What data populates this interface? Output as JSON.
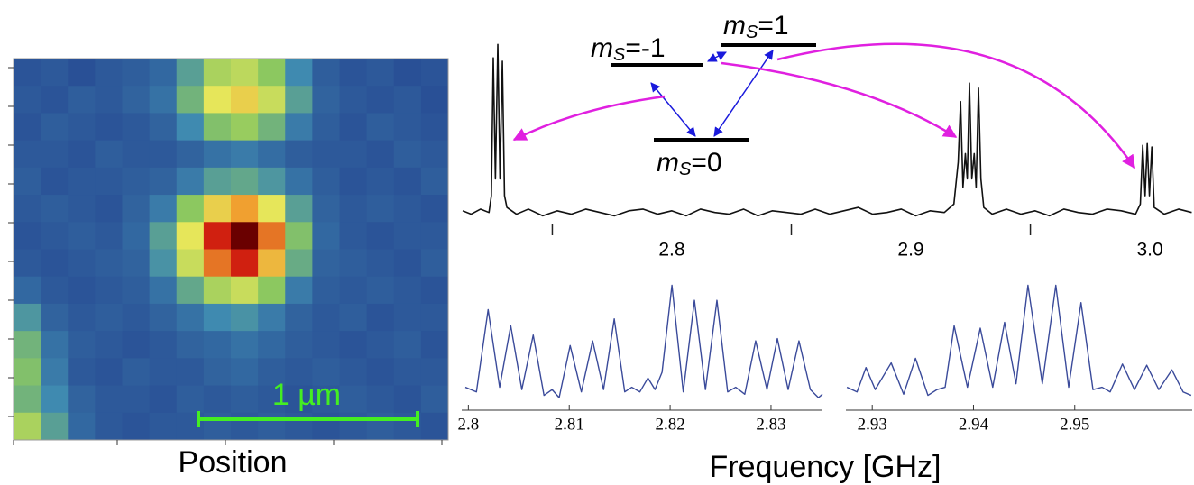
{
  "chart_data": [
    {
      "type": "heatmap",
      "xlabel": "Position",
      "scalebar_label": "1 µm",
      "clim": [
        0.1,
        1
      ],
      "colormap": [
        "#24418f",
        "#3f8ab0",
        "#8cc860",
        "#e6e65a",
        "#f0a030",
        "#d02010",
        "#6a0000"
      ],
      "values": [
        [
          0.14,
          0.15,
          0.13,
          0.15,
          0.16,
          0.18,
          0.3,
          0.45,
          0.48,
          0.4,
          0.25,
          0.16,
          0.14,
          0.15,
          0.13,
          0.14
        ],
        [
          0.15,
          0.14,
          0.16,
          0.15,
          0.17,
          0.2,
          0.35,
          0.55,
          0.6,
          0.5,
          0.3,
          0.17,
          0.15,
          0.14,
          0.15,
          0.13
        ],
        [
          0.14,
          0.16,
          0.15,
          0.14,
          0.15,
          0.17,
          0.25,
          0.38,
          0.42,
          0.35,
          0.22,
          0.16,
          0.14,
          0.16,
          0.15,
          0.14
        ],
        [
          0.15,
          0.15,
          0.14,
          0.16,
          0.15,
          0.15,
          0.17,
          0.2,
          0.22,
          0.19,
          0.16,
          0.15,
          0.15,
          0.14,
          0.16,
          0.15
        ],
        [
          0.16,
          0.14,
          0.15,
          0.15,
          0.16,
          0.17,
          0.22,
          0.3,
          0.32,
          0.28,
          0.2,
          0.16,
          0.14,
          0.15,
          0.14,
          0.16
        ],
        [
          0.15,
          0.16,
          0.15,
          0.14,
          0.17,
          0.22,
          0.4,
          0.6,
          0.7,
          0.55,
          0.3,
          0.17,
          0.15,
          0.16,
          0.15,
          0.14
        ],
        [
          0.14,
          0.15,
          0.16,
          0.15,
          0.18,
          0.3,
          0.55,
          0.85,
          1.0,
          0.75,
          0.38,
          0.18,
          0.15,
          0.14,
          0.15,
          0.15
        ],
        [
          0.15,
          0.14,
          0.15,
          0.16,
          0.17,
          0.27,
          0.5,
          0.75,
          0.85,
          0.65,
          0.33,
          0.17,
          0.16,
          0.15,
          0.14,
          0.16
        ],
        [
          0.18,
          0.15,
          0.14,
          0.15,
          0.16,
          0.2,
          0.32,
          0.45,
          0.5,
          0.4,
          0.22,
          0.16,
          0.15,
          0.16,
          0.15,
          0.14
        ],
        [
          0.28,
          0.17,
          0.15,
          0.16,
          0.15,
          0.17,
          0.2,
          0.25,
          0.27,
          0.22,
          0.17,
          0.15,
          0.16,
          0.14,
          0.15,
          0.15
        ],
        [
          0.35,
          0.2,
          0.16,
          0.15,
          0.14,
          0.15,
          0.17,
          0.18,
          0.2,
          0.18,
          0.16,
          0.15,
          0.14,
          0.15,
          0.16,
          0.14
        ],
        [
          0.38,
          0.22,
          0.15,
          0.14,
          0.16,
          0.15,
          0.15,
          0.17,
          0.18,
          0.16,
          0.15,
          0.16,
          0.15,
          0.14,
          0.15,
          0.15
        ],
        [
          0.35,
          0.25,
          0.17,
          0.15,
          0.15,
          0.14,
          0.16,
          0.15,
          0.16,
          0.15,
          0.14,
          0.15,
          0.16,
          0.15,
          0.14,
          0.16
        ],
        [
          0.45,
          0.3,
          0.18,
          0.15,
          0.14,
          0.15,
          0.15,
          0.16,
          0.15,
          0.16,
          0.15,
          0.14,
          0.15,
          0.16,
          0.15,
          0.14
        ]
      ]
    },
    {
      "type": "line",
      "color": "#111111",
      "xlim": [
        2.7121,
        3.0177
      ],
      "ylim": [
        -0.05,
        1.05
      ],
      "xticks": [
        2.8,
        2.9,
        {
          "value": 3,
          "label": "3.0"
        }
      ],
      "minor_xticks": [
        2.75,
        2.85,
        2.95
      ],
      "x": [
        2.7125,
        2.716,
        2.72,
        2.7235,
        2.7245,
        2.7253,
        2.7262,
        2.7272,
        2.7281,
        2.7291,
        2.73,
        2.731,
        2.735,
        2.74,
        2.746,
        2.752,
        2.758,
        2.764,
        2.77,
        2.776,
        2.782,
        2.788,
        2.794,
        2.8,
        2.806,
        2.812,
        2.818,
        2.824,
        2.83,
        2.836,
        2.842,
        2.848,
        2.854,
        2.86,
        2.866,
        2.872,
        2.878,
        2.884,
        2.89,
        2.896,
        2.902,
        2.908,
        2.914,
        2.918,
        2.9198,
        2.9208,
        2.9218,
        2.9228,
        2.9236,
        2.9245,
        2.9255,
        2.9265,
        2.9273,
        2.9283,
        2.9293,
        2.9305,
        2.934,
        2.94,
        2.946,
        2.952,
        2.958,
        2.964,
        2.97,
        2.976,
        2.982,
        2.988,
        2.994,
        2.996,
        2.997,
        2.998,
        2.9989,
        2.9998,
        3.0008,
        3.0018,
        3.006,
        3.012,
        3.0175
      ],
      "values": [
        0.01,
        -0.01,
        0.02,
        0.0,
        0.1,
        0.92,
        0.2,
        1.0,
        0.2,
        0.9,
        0.1,
        0.03,
        -0.01,
        0.02,
        -0.02,
        0.01,
        -0.01,
        0.02,
        0.0,
        -0.02,
        0.01,
        0.02,
        -0.01,
        0.01,
        -0.02,
        0.02,
        0.0,
        -0.01,
        0.02,
        -0.02,
        0.01,
        0.0,
        -0.01,
        0.02,
        -0.01,
        0.01,
        0.03,
        -0.01,
        0.0,
        0.02,
        -0.02,
        0.01,
        0.0,
        0.05,
        0.3,
        0.66,
        0.15,
        0.35,
        0.2,
        0.77,
        0.2,
        0.35,
        0.15,
        0.74,
        0.2,
        0.03,
        -0.01,
        0.02,
        -0.01,
        0.01,
        -0.02,
        0.02,
        0.0,
        -0.01,
        0.02,
        0.01,
        -0.01,
        0.05,
        0.4,
        0.1,
        0.41,
        0.1,
        0.39,
        0.03,
        -0.01,
        0.02,
        0.0
      ]
    },
    {
      "type": "line",
      "color": "#3a4a9a",
      "xlim": [
        2.7997,
        2.8351
      ],
      "ylim": [
        0,
        1.05
      ],
      "xticks": [
        2.8,
        2.81,
        2.82,
        2.83
      ],
      "x": [
        2.7997,
        2.8008,
        2.80196,
        2.8031,
        2.8042,
        2.8053,
        2.80643,
        2.8075,
        2.8083,
        2.809,
        2.81009,
        2.8112,
        2.81232,
        2.8134,
        2.81446,
        2.8155,
        2.8162,
        2.817,
        2.8178,
        2.8185,
        2.8192,
        2.82018,
        2.8213,
        2.82241,
        2.8235,
        2.82464,
        2.8257,
        2.8265,
        2.8274,
        2.82848,
        2.8296,
        2.83063,
        2.8317,
        2.83277,
        2.8339,
        2.8347,
        2.8351
      ],
      "values": [
        0.12,
        0.08,
        0.79,
        0.12,
        0.65,
        0.1,
        0.57,
        0.05,
        0.1,
        0.03,
        0.48,
        0.08,
        0.52,
        0.1,
        0.71,
        0.08,
        0.12,
        0.08,
        0.2,
        0.1,
        0.25,
        1.0,
        0.08,
        0.87,
        0.1,
        0.87,
        0.08,
        0.12,
        0.06,
        0.52,
        0.1,
        0.54,
        0.1,
        0.52,
        0.1,
        0.03,
        0.06
      ]
    },
    {
      "type": "line",
      "color": "#3a4a9a",
      "xlim": [
        2.9274,
        2.9616
      ],
      "ylim": [
        0,
        1.05
      ],
      "xticks": [
        2.93,
        2.94,
        2.95
      ],
      "x": [
        2.9275,
        2.9285,
        2.92938,
        2.9303,
        2.93187,
        2.9331,
        2.93427,
        2.9355,
        2.9364,
        2.9372,
        2.93809,
        2.9394,
        2.94067,
        2.9419,
        2.94307,
        2.9442,
        2.94538,
        2.9468,
        2.94813,
        2.9494,
        2.95062,
        2.9518,
        2.9527,
        2.9535,
        2.95471,
        2.9559,
        2.95711,
        2.9583,
        2.9596,
        2.9607,
        2.9615
      ],
      "values": [
        0.12,
        0.08,
        0.29,
        0.1,
        0.33,
        0.06,
        0.37,
        0.05,
        0.1,
        0.12,
        0.65,
        0.12,
        0.63,
        0.12,
        0.68,
        0.15,
        1.0,
        0.15,
        1.0,
        0.12,
        0.85,
        0.1,
        0.12,
        0.08,
        0.32,
        0.1,
        0.31,
        0.1,
        0.27,
        0.08,
        0.05
      ]
    }
  ],
  "shared_xlabel": "Frequency [GHz]",
  "level_diagram": {
    "levels": [
      {
        "symbol": "m",
        "subscript": "S",
        "rest": "=-1"
      },
      {
        "symbol": "m",
        "subscript": "S",
        "rest": "=1"
      },
      {
        "symbol": "m",
        "subscript": "S",
        "rest": "=0"
      }
    ]
  }
}
